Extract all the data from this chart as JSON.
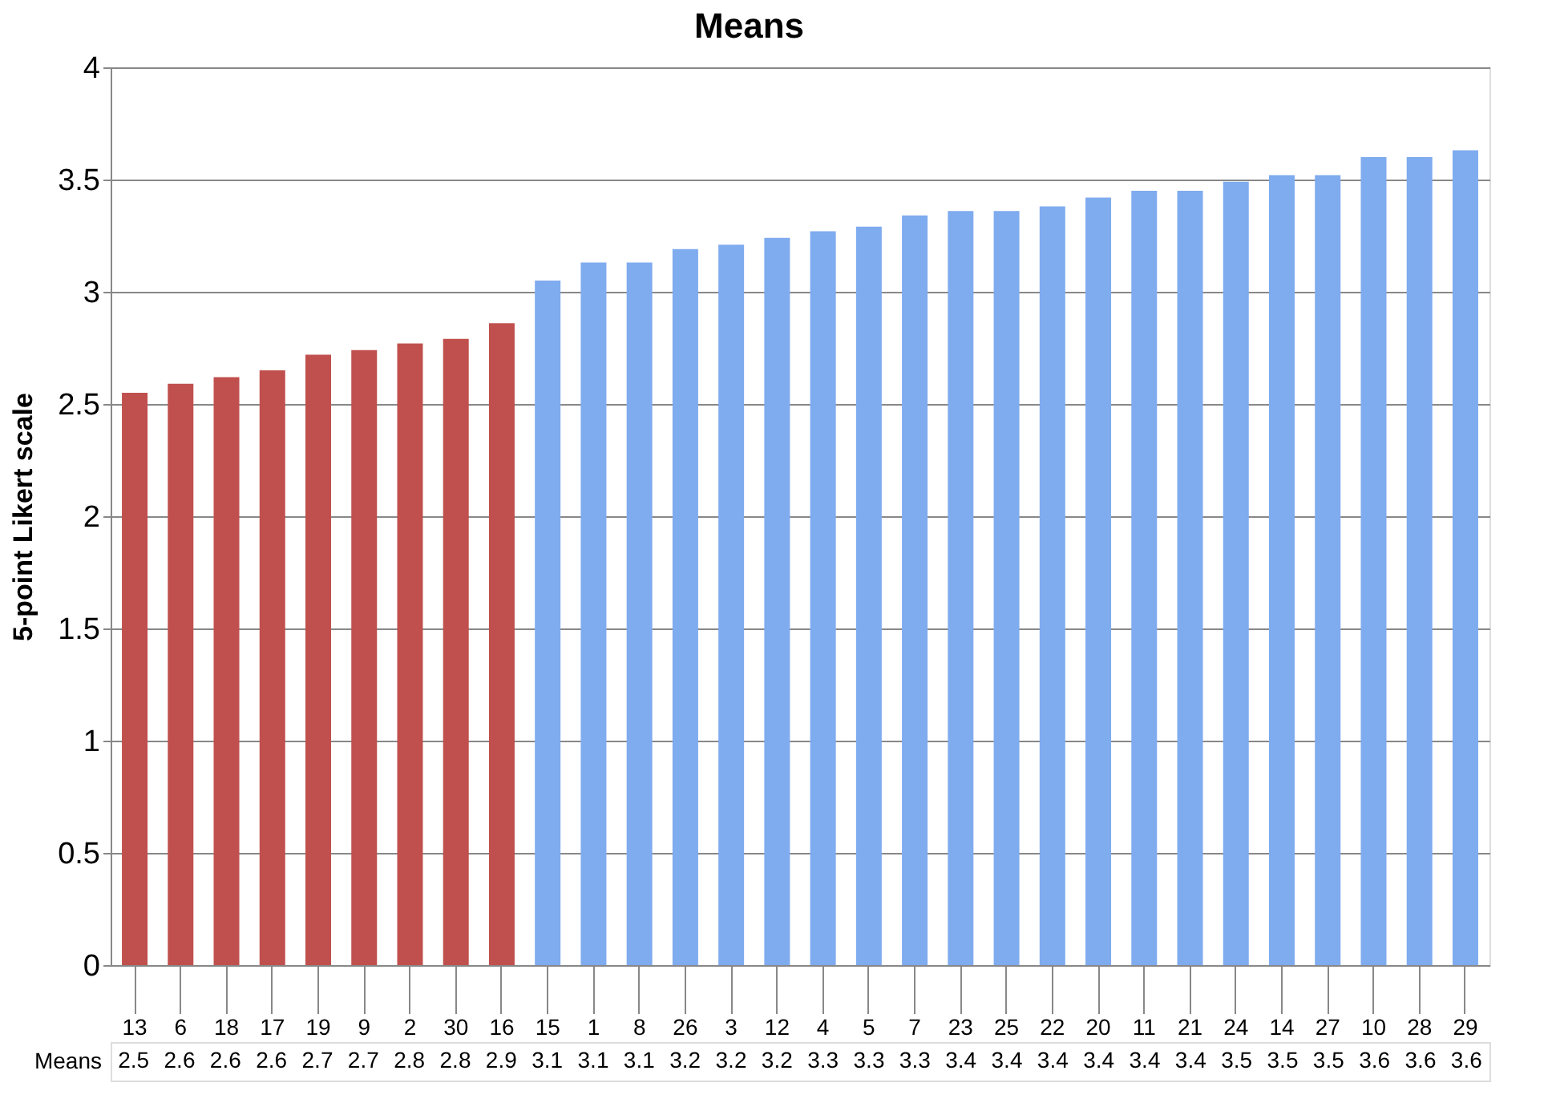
{
  "chart_data": {
    "type": "bar",
    "title": "Means",
    "ylabel": "5-point Likert scale",
    "categories": [
      "13",
      "6",
      "18",
      "17",
      "19",
      "9",
      "2",
      "30",
      "16",
      "15",
      "1",
      "8",
      "26",
      "3",
      "12",
      "4",
      "5",
      "7",
      "23",
      "25",
      "22",
      "20",
      "11",
      "21",
      "24",
      "14",
      "27",
      "10",
      "28",
      "29"
    ],
    "series": [
      {
        "name": "Means",
        "values": [
          2.55,
          2.59,
          2.62,
          2.65,
          2.72,
          2.74,
          2.77,
          2.79,
          2.86,
          3.05,
          3.13,
          3.13,
          3.19,
          3.21,
          3.24,
          3.27,
          3.29,
          3.34,
          3.36,
          3.36,
          3.38,
          3.42,
          3.45,
          3.45,
          3.49,
          3.52,
          3.52,
          3.6,
          3.6,
          3.63
        ],
        "value_labels": [
          "2.5",
          "2.6",
          "2.6",
          "2.6",
          "2.7",
          "2.7",
          "2.8",
          "2.8",
          "2.9",
          "3.1",
          "3.1",
          "3.1",
          "3.2",
          "3.2",
          "3.2",
          "3.3",
          "3.3",
          "3.3",
          "3.4",
          "3.4",
          "3.4",
          "3.4",
          "3.4",
          "3.4",
          "3.5",
          "3.5",
          "3.5",
          "3.6",
          "3.6",
          "3.6"
        ],
        "colors": [
          "#c0504d",
          "#c0504d",
          "#c0504d",
          "#c0504d",
          "#c0504d",
          "#c0504d",
          "#c0504d",
          "#c0504d",
          "#c0504d",
          "#7fabef",
          "#7fabef",
          "#7fabef",
          "#7fabef",
          "#7fabef",
          "#7fabef",
          "#7fabef",
          "#7fabef",
          "#7fabef",
          "#7fabef",
          "#7fabef",
          "#7fabef",
          "#7fabef",
          "#7fabef",
          "#7fabef",
          "#7fabef",
          "#7fabef",
          "#7fabef",
          "#7fabef",
          "#7fabef",
          "#7fabef"
        ]
      }
    ],
    "ylim": [
      0,
      4
    ],
    "yticks": [
      0,
      0.5,
      1,
      1.5,
      2,
      2.5,
      3,
      3.5,
      4
    ],
    "grid": "y"
  }
}
